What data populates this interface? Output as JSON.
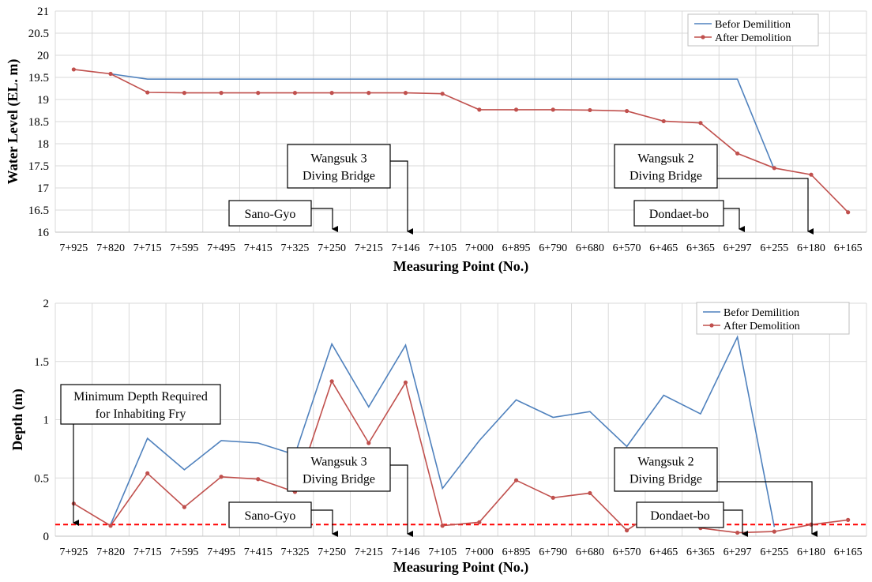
{
  "chart_data": [
    {
      "type": "line",
      "xlabel": "Measuring Point (No.)",
      "ylabel": "Water Level (EL. m)",
      "ylim": [
        16,
        21
      ],
      "yticks": [
        16,
        16.5,
        17,
        17.5,
        18,
        18.5,
        19,
        19.5,
        20,
        20.5,
        21
      ],
      "grid": true,
      "legend_position": "top-right",
      "categories": [
        "7+925",
        "7+820",
        "7+715",
        "7+595",
        "7+495",
        "7+415",
        "7+325",
        "7+250",
        "7+215",
        "7+146",
        "7+105",
        "7+000",
        "6+895",
        "6+790",
        "6+680",
        "6+570",
        "6+465",
        "6+365",
        "6+297",
        "6+255",
        "6+180",
        "6+165"
      ],
      "series": [
        {
          "name": "Befor Demilition",
          "color": "#4f81bd",
          "markers": false,
          "values": [
            null,
            19.58,
            19.46,
            19.46,
            19.46,
            19.46,
            19.46,
            19.46,
            19.46,
            19.46,
            19.46,
            19.46,
            19.46,
            19.46,
            19.46,
            19.46,
            19.46,
            19.46,
            19.46,
            17.42,
            null,
            null
          ]
        },
        {
          "name": "After Demolition",
          "color": "#c0504d",
          "markers": true,
          "values": [
            19.68,
            19.58,
            19.16,
            19.15,
            19.15,
            19.15,
            19.15,
            19.15,
            19.15,
            19.15,
            19.13,
            18.77,
            18.77,
            18.77,
            18.76,
            18.74,
            18.51,
            18.47,
            17.78,
            17.45,
            17.3,
            16.45
          ]
        }
      ],
      "annotations": [
        {
          "lines": [
            "Wangsuk 3",
            "Diving  Bridge"
          ]
        },
        {
          "lines": [
            "Sano-Gyo"
          ]
        },
        {
          "lines": [
            "Wangsuk 2",
            "Diving  Bridge"
          ]
        },
        {
          "lines": [
            "Dondaet-bo"
          ]
        }
      ]
    },
    {
      "type": "line",
      "xlabel": "Measuring Point (No.)",
      "ylabel": "Depth (m)",
      "ylim": [
        0,
        2
      ],
      "yticks": [
        0,
        0.5,
        1,
        1.5,
        2
      ],
      "grid": true,
      "legend_position": "top-right",
      "reference_line": {
        "y": 0.1,
        "color": "#ff0000",
        "style": "dashed"
      },
      "categories": [
        "7+925",
        "7+820",
        "7+715",
        "7+595",
        "7+495",
        "7+415",
        "7+325",
        "7+250",
        "7+215",
        "7+146",
        "7+105",
        "7+000",
        "6+895",
        "6+790",
        "6+680",
        "6+570",
        "6+465",
        "6+365",
        "6+297",
        "6+255",
        "6+180",
        "6+165"
      ],
      "series": [
        {
          "name": "Befor Demilition",
          "color": "#4f81bd",
          "markers": false,
          "values": [
            null,
            0.1,
            0.84,
            0.57,
            0.82,
            0.8,
            0.7,
            1.65,
            1.11,
            1.64,
            0.41,
            0.82,
            1.17,
            1.02,
            1.07,
            0.77,
            1.21,
            1.05,
            1.71,
            0.08,
            null,
            null
          ]
        },
        {
          "name": "After Demolition",
          "color": "#c0504d",
          "markers": true,
          "values": [
            0.28,
            0.09,
            0.54,
            0.25,
            0.51,
            0.49,
            0.38,
            1.33,
            0.8,
            1.32,
            0.09,
            0.12,
            0.48,
            0.33,
            0.37,
            0.05,
            0.26,
            0.07,
            0.03,
            0.04,
            0.1,
            0.14
          ]
        }
      ],
      "annotations": [
        {
          "lines": [
            "Minimum  Depth Required",
            "for Inhabiting  Fry"
          ]
        },
        {
          "lines": [
            "Wangsuk 3",
            "Diving  Bridge"
          ]
        },
        {
          "lines": [
            "Sano-Gyo"
          ]
        },
        {
          "lines": [
            "Wangsuk 2",
            "Diving  Bridge"
          ]
        },
        {
          "lines": [
            "Dondaet-bo"
          ]
        }
      ]
    }
  ]
}
